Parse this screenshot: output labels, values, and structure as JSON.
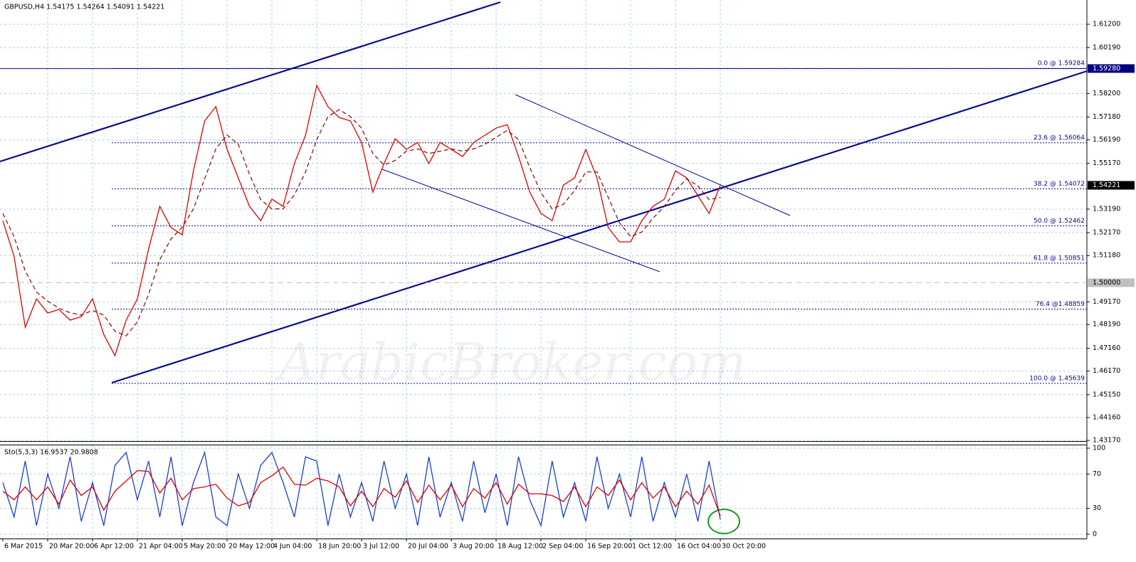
{
  "chart_data": [
    {
      "type": "line",
      "title": "GBPUSD,H4  1.54175 1.54264 1.54091 1.54221",
      "watermark": "ArabicBroker.com",
      "categories": [
        "6 Mar 2015",
        null,
        null,
        null,
        "20 Mar 20:00",
        null,
        null,
        null,
        "6 Apr 12:00",
        null,
        null,
        null,
        "21 Apr 04:00",
        null,
        null,
        null,
        "5 May 20:00",
        null,
        null,
        null,
        "20 May 12:00",
        null,
        null,
        null,
        "4 Jun 04:00",
        null,
        null,
        null,
        "18 Jun 20:00",
        null,
        null,
        null,
        "3 Jul 12:00",
        null,
        null,
        null,
        "20 Jul 04:00",
        null,
        null,
        null,
        "3 Aug 20:00",
        null,
        null,
        null,
        "18 Aug 12:00",
        null,
        null,
        null,
        "2 Sep 04:00",
        null,
        null,
        null,
        "16 Sep 20:00",
        null,
        null,
        null,
        "1 Oct 12:00",
        null,
        null,
        null,
        "16 Oct 04:00",
        null,
        null,
        null,
        "30 Oct 20:00"
      ],
      "series": [
        {
          "color": "#e00000",
          "style": "solid",
          "values": [
            1.5269,
            1.5115,
            1.4807,
            1.493,
            1.4869,
            1.4884,
            1.4838,
            1.4853,
            1.493,
            1.4776,
            1.4684,
            1.4838,
            1.493,
            1.5146,
            1.5331,
            1.5239,
            1.5208,
            1.5485,
            1.5701,
            1.5763,
            1.5578,
            1.5454,
            1.5331,
            1.5269,
            1.5362,
            1.5331,
            1.5516,
            1.5639,
            1.5855,
            1.5763,
            1.5716,
            1.5701,
            1.5608,
            1.5393,
            1.5516,
            1.5624,
            1.5578,
            1.5608,
            1.5516,
            1.5608,
            1.5578,
            1.5547,
            1.5608,
            1.5639,
            1.567,
            1.5685,
            1.5547,
            1.5393,
            1.53,
            1.5269,
            1.5423,
            1.5454,
            1.5578,
            1.5454,
            1.5239,
            1.5177,
            1.5177,
            1.5269,
            1.5331,
            1.5362,
            1.5485,
            1.5454,
            1.5377,
            1.53,
            1.54221
          ]
        },
        {
          "color": "#8b0000",
          "style": "dashed",
          "values": [
            1.53,
            1.52,
            1.505,
            1.496,
            1.492,
            1.489,
            1.487,
            1.486,
            1.488,
            1.486,
            1.479,
            1.477,
            1.483,
            1.495,
            1.51,
            1.519,
            1.524,
            1.532,
            1.545,
            1.558,
            1.564,
            1.56,
            1.547,
            1.536,
            1.532,
            1.532,
            1.538,
            1.548,
            1.562,
            1.572,
            1.575,
            1.572,
            1.567,
            1.556,
            1.551,
            1.553,
            1.557,
            1.558,
            1.556,
            1.557,
            1.558,
            1.557,
            1.558,
            1.56,
            1.563,
            1.566,
            1.562,
            1.55,
            1.539,
            1.532,
            1.534,
            1.54,
            1.548,
            1.548,
            1.537,
            1.526,
            1.52,
            1.522,
            1.528,
            1.533,
            1.54,
            1.545,
            1.542,
            1.536,
            1.537
          ]
        }
      ],
      "ylim": [
        1.4314,
        1.6225
      ],
      "yticks": [
        {
          "value": 1.612,
          "label": "1.61200"
        },
        {
          "value": 1.6019,
          "label": "1.60190"
        },
        {
          "value": 1.582,
          "label": "1.58200"
        },
        {
          "value": 1.5718,
          "label": "1.57180"
        },
        {
          "value": 1.5619,
          "label": "1.56190"
        },
        {
          "value": 1.5517,
          "label": "1.55170"
        },
        {
          "value": 1.5319,
          "label": "1.53190"
        },
        {
          "value": 1.5217,
          "label": "1.52170"
        },
        {
          "value": 1.5118,
          "label": "1.51180"
        },
        {
          "value": 1.4917,
          "label": "1.49170"
        },
        {
          "value": 1.4819,
          "label": "1.48190"
        },
        {
          "value": 1.4716,
          "label": "1.47160"
        },
        {
          "value": 1.4617,
          "label": "1.46170"
        },
        {
          "value": 1.4515,
          "label": "1.45150"
        },
        {
          "value": 1.4416,
          "label": "1.44160"
        },
        {
          "value": 1.4317,
          "label": "1.43170"
        }
      ],
      "grid": true,
      "levels": [
        {
          "value": 1.59284,
          "label": "0.0 @ 1.59284"
        },
        {
          "value": 1.56064,
          "label": "23.6 @ 1.56064"
        },
        {
          "value": 1.54072,
          "label": "38.2 @ 1.54072"
        },
        {
          "value": 1.52462,
          "label": "50.0 @ 1.52462"
        },
        {
          "value": 1.50851,
          "label": "61.8 @ 1.50851"
        },
        {
          "value": 1.48859,
          "label": "76.4 @1.48859"
        },
        {
          "value": 1.45639,
          "label": "100.0 @ 1.45639"
        }
      ],
      "axis_markers": [
        {
          "value": 1.5928,
          "label": "1.59280",
          "color": "#000080",
          "line": "solid"
        },
        {
          "value": 1.54221,
          "label": "1.54221",
          "color": "#000000",
          "line": "none"
        },
        {
          "value": 1.5,
          "label": "1.50000",
          "color": "#c0c0c0",
          "line": "dashed"
        }
      ]
    },
    {
      "type": "line",
      "title": "Sto(5,3,3) 16.9537 20.9808",
      "series": [
        {
          "color": "#1c3fd0",
          "style": "solid",
          "values": [
            60,
            20,
            85,
            10,
            70,
            30,
            90,
            15,
            60,
            10,
            80,
            95,
            40,
            85,
            20,
            90,
            10,
            60,
            95,
            20,
            10,
            70,
            30,
            80,
            95,
            60,
            20,
            90,
            85,
            10,
            70,
            20,
            60,
            15,
            85,
            30,
            70,
            10,
            90,
            20,
            60,
            15,
            85,
            25,
            70,
            10,
            90,
            40,
            10,
            85,
            20,
            60,
            15,
            90,
            30,
            70,
            20,
            90,
            15,
            60,
            20,
            70,
            15,
            85,
            16.9537
          ]
        },
        {
          "color": "#e00000",
          "style": "solid",
          "values": [
            50,
            40,
            55,
            40,
            55,
            35,
            63,
            45,
            55,
            28,
            50,
            62,
            74,
            73,
            48,
            65,
            40,
            53,
            55,
            58,
            42,
            33,
            37,
            60,
            68,
            78,
            58,
            57,
            65,
            62,
            55,
            33,
            50,
            32,
            53,
            43,
            62,
            37,
            57,
            40,
            57,
            32,
            53,
            42,
            60,
            35,
            58,
            47,
            47,
            45,
            38,
            55,
            32,
            55,
            45,
            63,
            40,
            60,
            42,
            55,
            32,
            50,
            35,
            57,
            20.9808
          ]
        }
      ],
      "ylim": [
        -5,
        103.3
      ],
      "yticks": [
        0,
        30,
        70,
        100
      ],
      "grid": true
    }
  ]
}
